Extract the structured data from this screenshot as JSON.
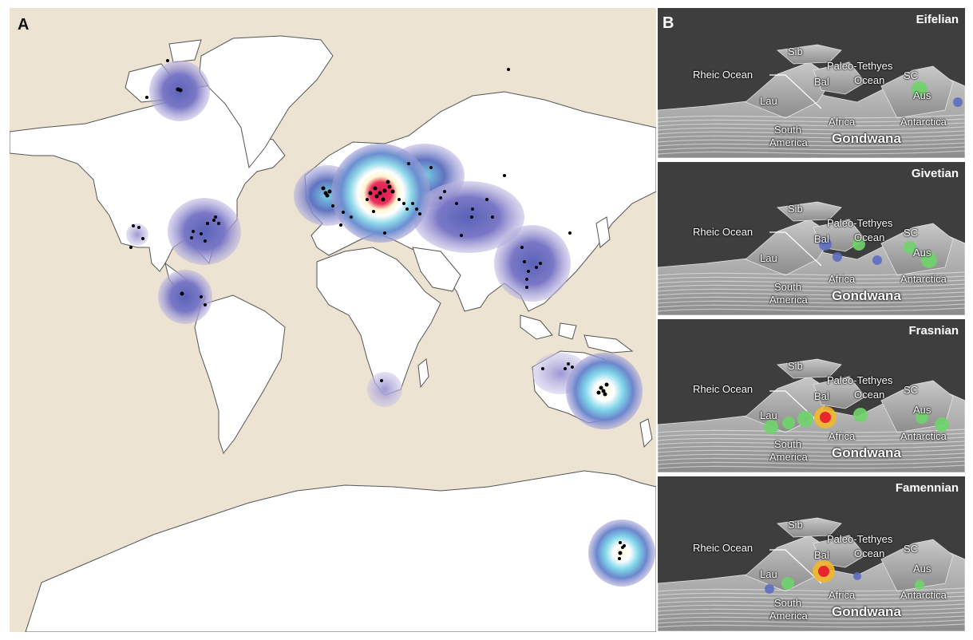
{
  "panel_a": {
    "letter": "A",
    "colors": {
      "ocean": "#ece3d2",
      "land": "#ffffff",
      "coast": "#555555",
      "heat_low": "#7c78c4",
      "heat_mid": "#6ec6e0",
      "heat_high": "#ffffe0",
      "heat_peak": "#d8174f",
      "occurrence": "#000000"
    }
  },
  "panel_b": {
    "letter": "B",
    "periods": [
      {
        "name": "Eifelian",
        "labels": {
          "sib": "Sib",
          "bal": "Bal",
          "paleo": "Paleo-Tethyes",
          "ocean": "Ocean",
          "rheic": "Rheic Ocean",
          "lau": "Lau",
          "sc": "SC",
          "aus": "Aus",
          "south": "South",
          "america": "America",
          "africa": "Africa",
          "antarctica": "Antarctica",
          "gondwana": "Gondwana"
        }
      },
      {
        "name": "Givetian",
        "labels": {
          "sib": "Sib",
          "bal": "Bal",
          "paleo": "Paleo-Tethyes",
          "ocean": "Ocean",
          "rheic": "Rheic Ocean",
          "lau": "Lau",
          "sc": "SC",
          "aus": "Aus",
          "south": "South",
          "america": "America",
          "africa": "Africa",
          "antarctica": "Antarctica",
          "gondwana": "Gondwana"
        }
      },
      {
        "name": "Frasnian",
        "labels": {
          "sib": "Sib",
          "bal": "Bal",
          "paleo": "Paleo-Tethyes",
          "ocean": "Ocean",
          "rheic": "Rheic Ocean",
          "lau": "Lau",
          "sc": "SC",
          "aus": "Aus",
          "south": "South",
          "america": "America",
          "africa": "Africa",
          "antarctica": "Antarctica",
          "gondwana": "Gondwana"
        }
      },
      {
        "name": "Famennian",
        "labels": {
          "sib": "Sib",
          "bal": "Bal",
          "paleo": "Paleo-Tethyes",
          "ocean": "Ocean",
          "rheic": "Rheic Ocean",
          "lau": "Lau",
          "sc": "SC",
          "aus": "Aus",
          "south": "South",
          "america": "America",
          "africa": "Africa",
          "antarctica": "Antarctica",
          "gondwana": "Gondwana"
        }
      }
    ]
  }
}
